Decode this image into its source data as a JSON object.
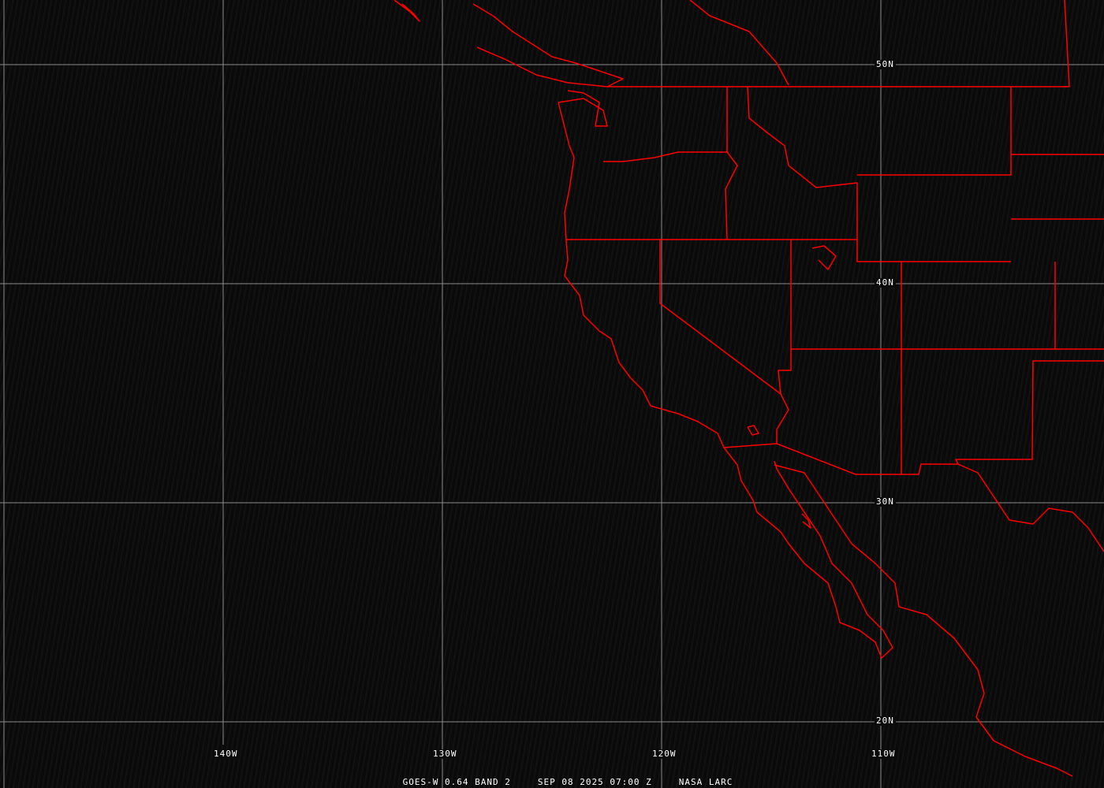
{
  "lat_labels": [
    "50N",
    "40N",
    "30N",
    "20N"
  ],
  "lon_labels": [
    "140W",
    "130W",
    "120W",
    "110W"
  ],
  "caption": {
    "satellite": "GOES-W 0.64 BAND 2",
    "datetime": "SEP 08 2025 07:00 Z",
    "source": "NASA LARC"
  },
  "colors": {
    "boundaries": "#ff0000",
    "grid": "#8a8a8a",
    "background": "#0b0b0b"
  }
}
